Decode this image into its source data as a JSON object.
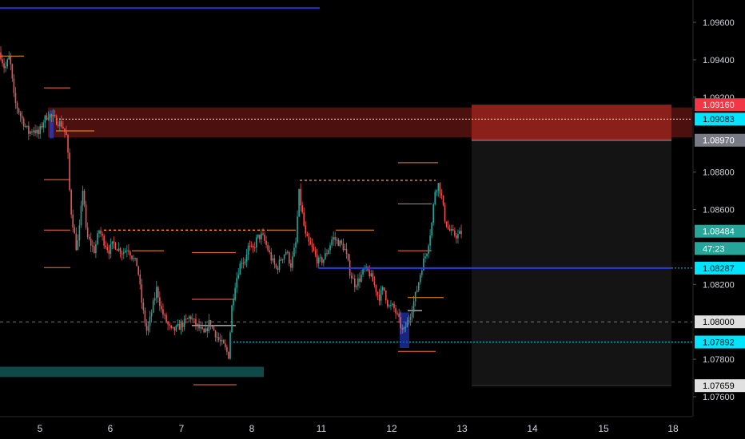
{
  "chart_data": {
    "type": "candlestick",
    "title": "",
    "y_axis": {
      "ticks": [
        "1.09600",
        "1.09400",
        "1.09200",
        "1.08800",
        "1.08600",
        "1.08200",
        "1.07800",
        "1.07600"
      ],
      "range": [
        1.0752,
        1.0975
      ],
      "side": "right"
    },
    "x_axis": {
      "ticks": [
        "5",
        "6",
        "7",
        "8",
        "11",
        "12",
        "13",
        "14",
        "15",
        "18"
      ]
    },
    "price_labels": [
      {
        "text": "1.09160",
        "color": "#f23645"
      },
      {
        "text": "1.09083",
        "color": "#00e5ff"
      },
      {
        "text": "1.08970",
        "color": "#787b86"
      },
      {
        "text": "1.08484",
        "color": "#26a69a"
      },
      {
        "text": "47:23",
        "color": "#26a69a"
      },
      {
        "text": "1.08287",
        "color": "#00e5ff"
      },
      {
        "text": "1.08000",
        "color": "#e0e0e0"
      },
      {
        "text": "1.07892",
        "color": "#00e5ff"
      },
      {
        "text": "1.07659",
        "color": "#e0e0e0"
      }
    ],
    "zones": [
      {
        "name": "supply-zone",
        "from": 1.08985,
        "to": 1.09145,
        "color": "#8b1f1a"
      },
      {
        "name": "demand-zone",
        "from": 1.07705,
        "to": 1.0776,
        "color": "#0e4a47"
      },
      {
        "name": "position-stop",
        "from": 1.0897,
        "to": 1.0916,
        "color": "#a6271f"
      },
      {
        "name": "position-target",
        "from": 1.07659,
        "to": 1.0897,
        "color": "#141414"
      }
    ],
    "levels": [
      {
        "name": "top-blue-line",
        "value": 1.09715,
        "color": "#1e2cc8"
      },
      {
        "name": "support-blue-line",
        "value": 1.08287,
        "color": "#2340e0"
      },
      {
        "name": "round-number-line",
        "value": 1.08,
        "color": "#7a7a7a"
      },
      {
        "name": "cyan-line-1",
        "value": 1.09083,
        "color": "#00e5ff"
      },
      {
        "name": "cyan-line-2",
        "value": 1.07892,
        "color": "#00e5ff"
      },
      {
        "name": "cyan-line-3",
        "value": 1.08287,
        "color": "#00e5ff"
      }
    ],
    "anchors": [
      [
        0,
        1.0944
      ],
      [
        6,
        1.0935
      ],
      [
        12,
        1.0942
      ],
      [
        18,
        1.0918
      ],
      [
        24,
        1.0912
      ],
      [
        30,
        1.0906
      ],
      [
        36,
        1.0901
      ],
      [
        42,
        1.0903
      ],
      [
        48,
        1.09
      ],
      [
        54,
        1.0907
      ],
      [
        60,
        1.0911
      ],
      [
        66,
        1.0909
      ],
      [
        72,
        1.0907
      ],
      [
        78,
        1.0905
      ],
      [
        84,
        1.0898
      ],
      [
        88,
        1.0862
      ],
      [
        92,
        1.085
      ],
      [
        96,
        1.0838
      ],
      [
        100,
        1.0852
      ],
      [
        104,
        1.0874
      ],
      [
        108,
        1.0846
      ],
      [
        112,
        1.0843
      ],
      [
        118,
        1.0838
      ],
      [
        124,
        1.0849
      ],
      [
        130,
        1.0843
      ],
      [
        136,
        1.0838
      ],
      [
        142,
        1.0842
      ],
      [
        148,
        1.0839
      ],
      [
        154,
        1.0837
      ],
      [
        160,
        1.084
      ],
      [
        166,
        1.0834
      ],
      [
        172,
        1.083
      ],
      [
        178,
        1.0808
      ],
      [
        184,
        1.0794
      ],
      [
        190,
        1.0806
      ],
      [
        196,
        1.0818
      ],
      [
        202,
        1.0806
      ],
      [
        208,
        1.08
      ],
      [
        214,
        1.0795
      ],
      [
        220,
        1.0796
      ],
      [
        226,
        1.0798
      ],
      [
        232,
        1.08
      ],
      [
        238,
        1.0803
      ],
      [
        244,
        1.0799
      ],
      [
        250,
        1.0796
      ],
      [
        256,
        1.0793
      ],
      [
        262,
        1.08
      ],
      [
        268,
        1.0795
      ],
      [
        274,
        1.079
      ],
      [
        280,
        1.0787
      ],
      [
        286,
        1.0782
      ],
      [
        290,
        1.0808
      ],
      [
        294,
        1.082
      ],
      [
        298,
        1.0827
      ],
      [
        302,
        1.0833
      ],
      [
        306,
        1.0832
      ],
      [
        310,
        1.084
      ],
      [
        316,
        1.0838
      ],
      [
        322,
        1.0845
      ],
      [
        328,
        1.0846
      ],
      [
        334,
        1.084
      ],
      [
        340,
        1.0833
      ],
      [
        346,
        1.0828
      ],
      [
        352,
        1.0834
      ],
      [
        358,
        1.0838
      ],
      [
        364,
        1.083
      ],
      [
        370,
        1.0842
      ],
      [
        374,
        1.0869
      ],
      [
        378,
        1.0858
      ],
      [
        382,
        1.0846
      ],
      [
        386,
        1.0842
      ],
      [
        392,
        1.0838
      ],
      [
        398,
        1.0832
      ],
      [
        404,
        1.0833
      ],
      [
        410,
        1.0838
      ],
      [
        416,
        1.0845
      ],
      [
        422,
        1.0843
      ],
      [
        428,
        1.0841
      ],
      [
        432,
        1.0838
      ],
      [
        438,
        1.0826
      ],
      [
        444,
        1.082
      ],
      [
        450,
        1.0823
      ],
      [
        456,
        1.0828
      ],
      [
        462,
        1.0826
      ],
      [
        468,
        1.082
      ],
      [
        474,
        1.0813
      ],
      [
        480,
        1.0818
      ],
      [
        486,
        1.0808
      ],
      [
        492,
        1.0808
      ],
      [
        498,
        1.0802
      ],
      [
        504,
        1.0794
      ],
      [
        510,
        1.08
      ],
      [
        516,
        1.0808
      ],
      [
        522,
        1.0818
      ],
      [
        528,
        1.083
      ],
      [
        534,
        1.0838
      ],
      [
        540,
        1.0852
      ],
      [
        544,
        1.087
      ],
      [
        548,
        1.0874
      ],
      [
        552,
        1.0868
      ],
      [
        556,
        1.0856
      ],
      [
        560,
        1.085
      ],
      [
        566,
        1.0847
      ],
      [
        572,
        1.0846
      ],
      [
        578,
        1.0848
      ]
    ]
  }
}
